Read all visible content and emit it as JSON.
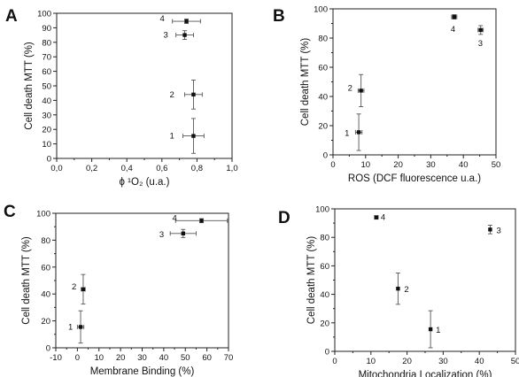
{
  "chart_data": [
    {
      "type": "scatter",
      "panel": "A",
      "xlabel": "ϕ ¹O₂ (u.a.)",
      "ylabel": "Cell death MTT (%)",
      "xlim": [
        0.0,
        1.0
      ],
      "ylim": [
        0,
        100
      ],
      "xticks": [
        0.0,
        0.2,
        0.4,
        0.6,
        0.8,
        1.0
      ],
      "xtick_labels": [
        "0,0",
        "0,2",
        "0,4",
        "0,6",
        "0,8",
        "1,0"
      ],
      "yticks": [
        0,
        10,
        20,
        30,
        40,
        50,
        60,
        70,
        80,
        90,
        100
      ],
      "grid": false,
      "points": [
        {
          "label": "1",
          "x": 0.78,
          "y": 15.5,
          "xerr": 0.06,
          "yerr": 12
        },
        {
          "label": "2",
          "x": 0.78,
          "y": 44,
          "xerr": 0.05,
          "yerr": 10
        },
        {
          "label": "3",
          "x": 0.73,
          "y": 85,
          "xerr": 0.05,
          "yerr": 3
        },
        {
          "label": "4",
          "x": 0.74,
          "y": 94.5,
          "xerr": 0.08,
          "yerr": 1.5
        }
      ]
    },
    {
      "type": "scatter",
      "panel": "B",
      "xlabel": "ROS (DCF fluorescence u.a.)",
      "ylabel": "Cell death MTT (%)",
      "xlim": [
        0,
        50
      ],
      "ylim": [
        0,
        100
      ],
      "xticks": [
        0,
        10,
        20,
        30,
        40,
        50
      ],
      "yticks": [
        0,
        20,
        40,
        60,
        80,
        100
      ],
      "grid": false,
      "points": [
        {
          "label": "1",
          "x": 7.9,
          "y": 15.5,
          "xerr": 1.0,
          "yerr": 12.5
        },
        {
          "label": "2",
          "x": 8.6,
          "y": 44,
          "xerr": 0.9,
          "yerr": 11
        },
        {
          "label": "3",
          "x": 45.3,
          "y": 85.5,
          "xerr": 0.8,
          "yerr": 3
        },
        {
          "label": "4",
          "x": 37.2,
          "y": 94.5,
          "xerr": 0.8,
          "yerr": 1.5
        }
      ]
    },
    {
      "type": "scatter",
      "panel": "C",
      "xlabel": "Membrane Binding (%)",
      "ylabel": "Cell death MTT (%)",
      "xlim": [
        -10,
        70
      ],
      "ylim": [
        0,
        100
      ],
      "xticks": [
        -10,
        0,
        10,
        20,
        30,
        40,
        50,
        60,
        70
      ],
      "yticks": [
        0,
        20,
        40,
        60,
        80,
        100
      ],
      "grid": false,
      "points": [
        {
          "label": "1",
          "x": 1.5,
          "y": 15.5,
          "xerr": 1.5,
          "yerr": 12
        },
        {
          "label": "2",
          "x": 2.7,
          "y": 43.5,
          "xerr": 0.9,
          "yerr": 11
        },
        {
          "label": "3",
          "x": 49,
          "y": 85,
          "xerr": 6,
          "yerr": 3
        },
        {
          "label": "4",
          "x": 57.5,
          "y": 94.5,
          "xerr": 12,
          "yerr": 1.5
        }
      ]
    },
    {
      "type": "scatter",
      "panel": "D",
      "xlabel": "Mitochondria Localization (%)",
      "ylabel": "Cell death MTT (%)",
      "xlim": [
        0,
        50
      ],
      "ylim": [
        0,
        100
      ],
      "xticks": [
        0,
        10,
        20,
        30,
        40,
        50
      ],
      "yticks": [
        0,
        20,
        40,
        60,
        80,
        100
      ],
      "grid": false,
      "points": [
        {
          "label": "1",
          "x": 26.5,
          "y": 15.5,
          "xerr": 0,
          "yerr": 13
        },
        {
          "label": "2",
          "x": 17.5,
          "y": 44,
          "xerr": 0,
          "yerr": 11
        },
        {
          "label": "3",
          "x": 43,
          "y": 85.5,
          "xerr": 0,
          "yerr": 3
        },
        {
          "label": "4",
          "x": 11.5,
          "y": 94,
          "xerr": 0.5,
          "yerr": 1.2
        }
      ]
    }
  ]
}
